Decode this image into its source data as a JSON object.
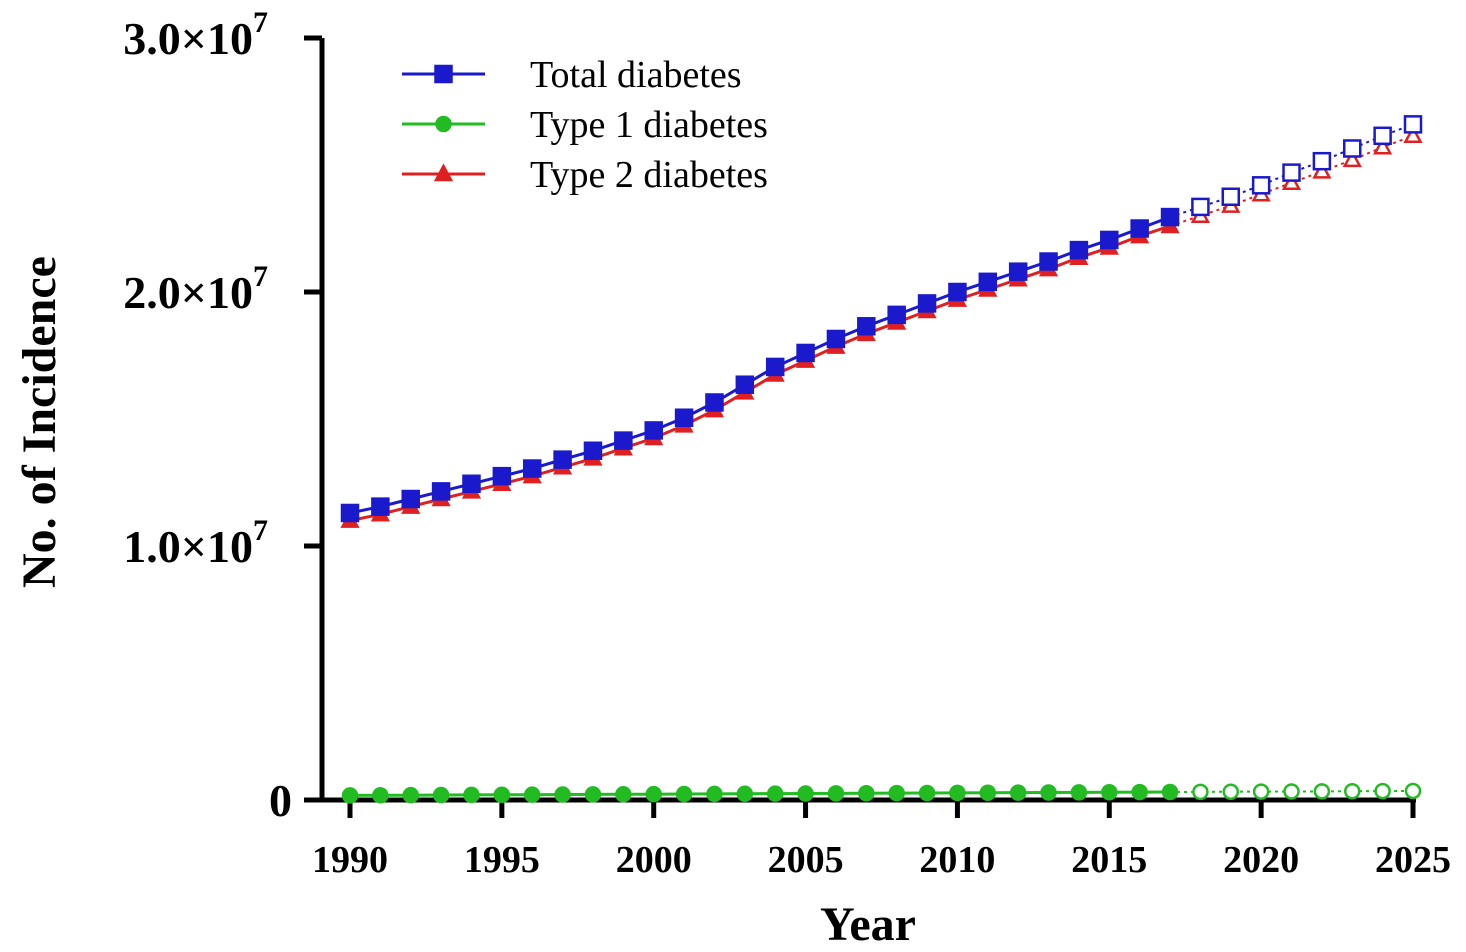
{
  "chart_data": {
    "type": "line",
    "xlabel": "Year",
    "ylabel": "No. of Incidence",
    "xlim": [
      1990,
      2025
    ],
    "ylim": [
      0,
      30000000
    ],
    "x_ticks": [
      "1990",
      "1995",
      "2000",
      "2005",
      "2010",
      "2015",
      "2020",
      "2025"
    ],
    "y_ticks": [
      {
        "mantissa": "0",
        "exponent": ""
      },
      {
        "mantissa": "1.0×10",
        "exponent": "7"
      },
      {
        "mantissa": "2.0×10",
        "exponent": "7"
      },
      {
        "mantissa": "3.0×10",
        "exponent": "7"
      }
    ],
    "legend_position": "top-left",
    "observed_through": 2017,
    "projected_from": 2018,
    "x": [
      1990,
      1991,
      1992,
      1993,
      1994,
      1995,
      1996,
      1997,
      1998,
      1999,
      2000,
      2001,
      2002,
      2003,
      2004,
      2005,
      2006,
      2007,
      2008,
      2009,
      2010,
      2011,
      2012,
      2013,
      2014,
      2015,
      2016,
      2017,
      2018,
      2019,
      2020,
      2021,
      2022,
      2023,
      2024,
      2025
    ],
    "series": [
      {
        "name": "Total diabetes",
        "color": "#1a1acc",
        "marker": "square",
        "values": [
          11300000,
          11550000,
          11850000,
          12150000,
          12450000,
          12750000,
          13050000,
          13400000,
          13750000,
          14150000,
          14550000,
          15050000,
          15650000,
          16350000,
          17050000,
          17600000,
          18150000,
          18650000,
          19100000,
          19550000,
          20000000,
          20400000,
          20800000,
          21200000,
          21650000,
          22050000,
          22500000,
          22950000,
          23350000,
          23750000,
          24200000,
          24700000,
          25150000,
          25650000,
          26150000,
          26600000
        ]
      },
      {
        "name": "Type 1 diabetes",
        "color": "#22bb22",
        "marker": "circle",
        "values": [
          180000,
          185000,
          190000,
          195000,
          200000,
          205000,
          210000,
          215000,
          220000,
          225000,
          230000,
          235000,
          240000,
          245000,
          250000,
          255000,
          260000,
          265000,
          270000,
          275000,
          280000,
          285000,
          290000,
          295000,
          300000,
          305000,
          310000,
          315000,
          320000,
          325000,
          330000,
          335000,
          340000,
          345000,
          350000,
          355000
        ]
      },
      {
        "name": "Type 2 diabetes",
        "color": "#e02020",
        "marker": "triangle",
        "values": [
          11000000,
          11250000,
          11550000,
          11850000,
          12150000,
          12450000,
          12750000,
          13100000,
          13450000,
          13850000,
          14250000,
          14750000,
          15350000,
          16050000,
          16750000,
          17300000,
          17850000,
          18350000,
          18800000,
          19250000,
          19700000,
          20100000,
          20500000,
          20900000,
          21350000,
          21750000,
          22200000,
          22600000,
          23000000,
          23400000,
          23850000,
          24300000,
          24750000,
          25200000,
          25700000,
          26150000
        ]
      }
    ]
  }
}
